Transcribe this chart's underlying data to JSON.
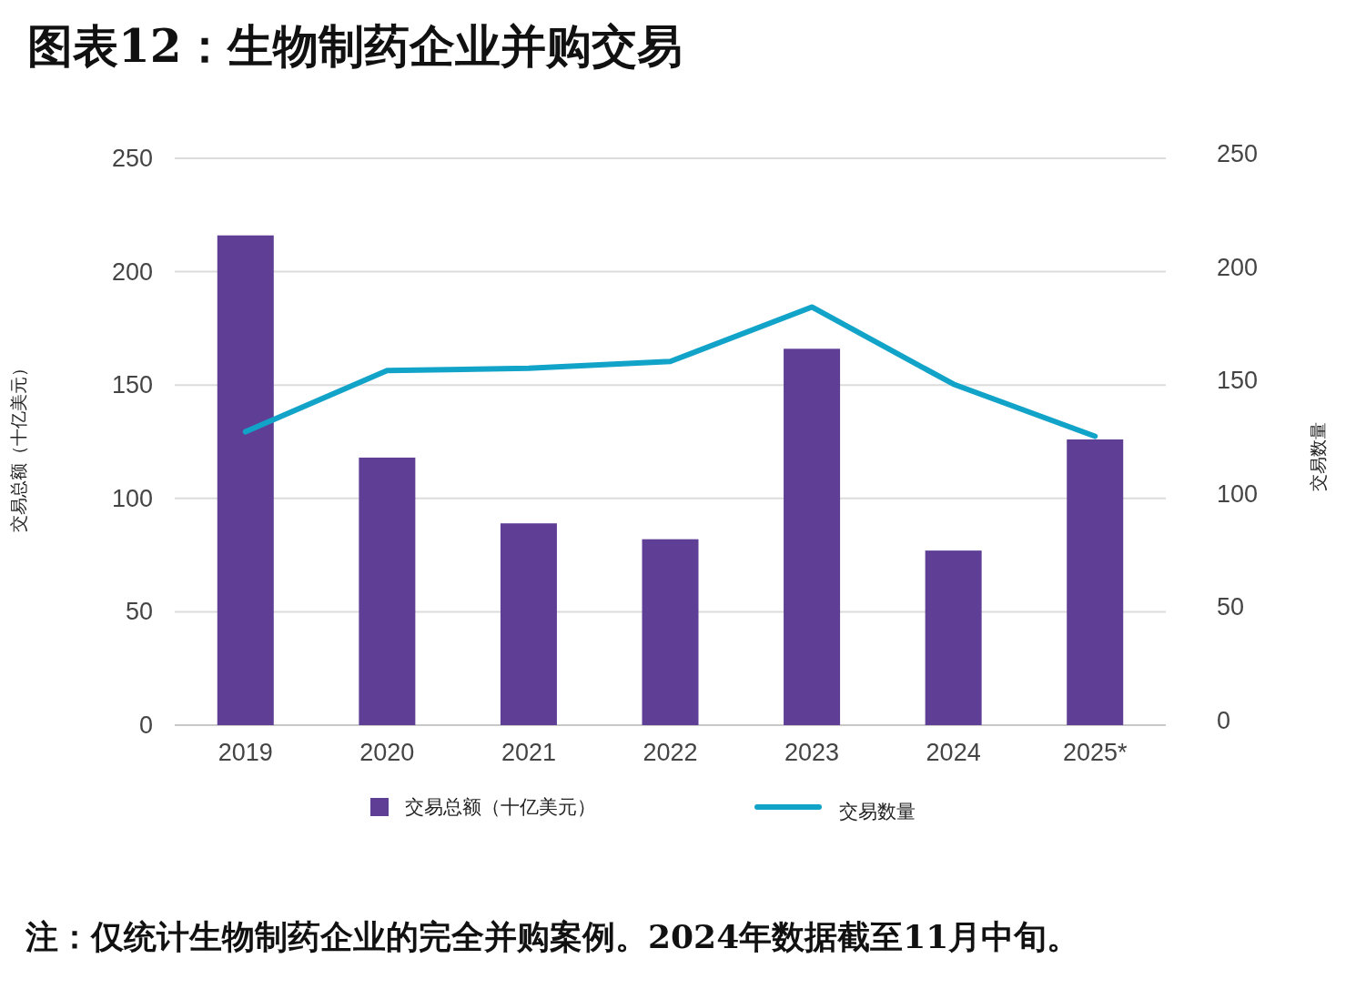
{
  "chart_data": {
    "type": "bar",
    "title": "图表12：生物制药企业并购交易",
    "categories": [
      "2019",
      "2020",
      "2021",
      "2022",
      "2023",
      "2024",
      "2025*"
    ],
    "series": [
      {
        "name": "交易总额（十亿美元）",
        "color": "#5f3f96",
        "values": [
          216,
          118,
          89,
          82,
          166,
          77,
          126
        ]
      },
      {
        "name": "交易数量",
        "type": "line",
        "axis": "y2",
        "color": "#11a3c8",
        "values": [
          129,
          156,
          157,
          160,
          184,
          150,
          127
        ]
      }
    ],
    "ylabel": "交易总额（十亿美元）",
    "y2label": "交易数量",
    "ylim": [
      0,
      250
    ],
    "yticks": [
      0,
      50,
      100,
      150,
      200,
      250
    ],
    "y2lim": [
      0,
      250
    ],
    "y2ticks": [
      0,
      50,
      100,
      150,
      200,
      250
    ],
    "grid": "y",
    "legend": "bottom",
    "annotations": [
      "注：仅统计生物制药企业的完全并购案例。2024年数据截至11月中旬。"
    ]
  }
}
